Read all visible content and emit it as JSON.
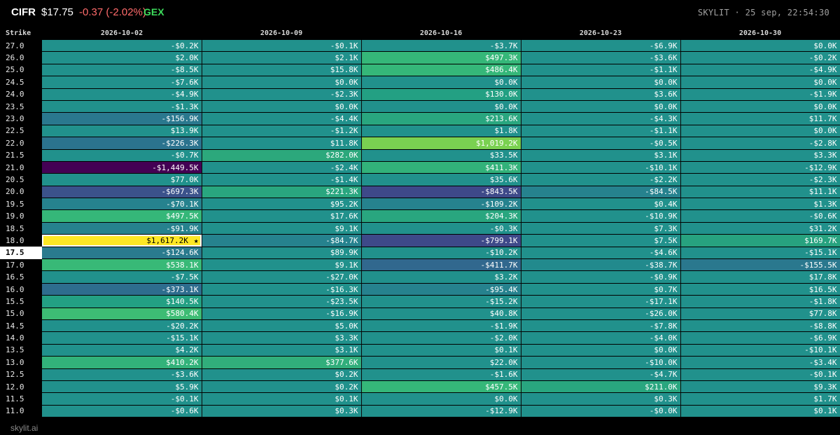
{
  "header": {
    "ticker": "CIFR",
    "price": "$17.75",
    "change": "-0.37 (-2.02%)",
    "mode": "GEX",
    "brand": "SKYLIT · 25 sep, 22:54:30",
    "colors": {
      "change": "#ff6b6b",
      "mode": "#3ddc5c"
    }
  },
  "table": {
    "strike_header": "Strike",
    "expirations": [
      "2026-10-02",
      "2026-10-09",
      "2026-10-16",
      "2026-10-23",
      "2026-10-30"
    ],
    "current_strike": "17.5",
    "highlight": {
      "strike": "18.0",
      "expiration": "2026-10-02",
      "marker": "★"
    },
    "rows": [
      {
        "strike": "27.0",
        "values": [
          "-$0.2K",
          "-$0.1K",
          "-$3.7K",
          "-$6.9K",
          "$0.0K"
        ],
        "colors": [
          "#21918c",
          "#21918c",
          "#21918c",
          "#21918c",
          "#21918c"
        ]
      },
      {
        "strike": "26.0",
        "values": [
          "$2.0K",
          "$2.1K",
          "$497.3K",
          "-$3.6K",
          "-$0.2K"
        ],
        "colors": [
          "#21918c",
          "#21918c",
          "#35b779",
          "#21918c",
          "#21918c"
        ]
      },
      {
        "strike": "25.0",
        "values": [
          "-$8.5K",
          "$15.8K",
          "$486.4K",
          "-$1.1K",
          "-$4.9K"
        ],
        "colors": [
          "#21918c",
          "#21918c",
          "#35b779",
          "#21918c",
          "#21918c"
        ]
      },
      {
        "strike": "24.5",
        "values": [
          "-$7.6K",
          "$0.0K",
          "$0.0K",
          "$0.0K",
          "$0.0K"
        ],
        "colors": [
          "#21918c",
          "#21918c",
          "#21918c",
          "#21918c",
          "#21918c"
        ]
      },
      {
        "strike": "24.0",
        "values": [
          "-$4.9K",
          "-$2.3K",
          "$130.0K",
          "$3.6K",
          "-$1.9K"
        ],
        "colors": [
          "#21918c",
          "#21918c",
          "#23a083",
          "#21918c",
          "#21918c"
        ]
      },
      {
        "strike": "23.5",
        "values": [
          "-$1.3K",
          "$0.0K",
          "$0.0K",
          "$0.0K",
          "$0.0K"
        ],
        "colors": [
          "#21918c",
          "#21918c",
          "#21918c",
          "#21918c",
          "#21918c"
        ]
      },
      {
        "strike": "23.0",
        "values": [
          "-$156.9K",
          "-$4.4K",
          "$213.6K",
          "-$4.3K",
          "$11.7K"
        ],
        "colors": [
          "#2a788e",
          "#21918c",
          "#29a67f",
          "#21918c",
          "#21918c"
        ]
      },
      {
        "strike": "22.5",
        "values": [
          "$13.9K",
          "-$1.2K",
          "$1.8K",
          "-$1.1K",
          "$0.0K"
        ],
        "colors": [
          "#21918c",
          "#21918c",
          "#21918c",
          "#21918c",
          "#21918c"
        ]
      },
      {
        "strike": "22.0",
        "values": [
          "-$226.3K",
          "$11.8K",
          "$1,019.2K",
          "-$0.5K",
          "-$2.8K"
        ],
        "colors": [
          "#2b738e",
          "#21918c",
          "#7ad151",
          "#21918c",
          "#21918c"
        ]
      },
      {
        "strike": "21.5",
        "values": [
          "-$0.7K",
          "$282.0K",
          "$33.5K",
          "$3.1K",
          "$3.3K"
        ],
        "colors": [
          "#21918c",
          "#2ca87c",
          "#21918c",
          "#21918c",
          "#21918c"
        ]
      },
      {
        "strike": "21.0",
        "values": [
          "-$1,449.5K",
          "-$2.4K",
          "$411.3K",
          "-$10.1K",
          "-$12.9K"
        ],
        "colors": [
          "#440154",
          "#21918c",
          "#32b27a",
          "#21918c",
          "#21918c"
        ]
      },
      {
        "strike": "20.5",
        "values": [
          "$77.0K",
          "-$1.4K",
          "$35.6K",
          "-$2.2K",
          "-$2.3K"
        ],
        "colors": [
          "#21918c",
          "#21918c",
          "#21918c",
          "#21918c",
          "#21918c"
        ]
      },
      {
        "strike": "20.0",
        "values": [
          "-$697.3K",
          "$221.3K",
          "-$843.5K",
          "-$84.5K",
          "$11.1K"
        ],
        "colors": [
          "#3b528b",
          "#29a67f",
          "#3e4989",
          "#26828e",
          "#21918c"
        ]
      },
      {
        "strike": "19.5",
        "values": [
          "-$70.1K",
          "$95.2K",
          "-$109.2K",
          "$0.4K",
          "$1.3K"
        ],
        "colors": [
          "#26828e",
          "#21918c",
          "#26828e",
          "#21918c",
          "#21918c"
        ]
      },
      {
        "strike": "19.0",
        "values": [
          "$497.5K",
          "$17.6K",
          "$204.3K",
          "-$10.9K",
          "-$0.6K"
        ],
        "colors": [
          "#35b779",
          "#21918c",
          "#29a67f",
          "#21918c",
          "#21918c"
        ]
      },
      {
        "strike": "18.5",
        "values": [
          "-$91.9K",
          "$9.1K",
          "-$0.3K",
          "$7.3K",
          "$31.2K"
        ],
        "colors": [
          "#26828e",
          "#21918c",
          "#21918c",
          "#21918c",
          "#21918c"
        ]
      },
      {
        "strike": "18.0",
        "values": [
          "$1,617.2K",
          "-$84.7K",
          "-$799.1K",
          "$7.5K",
          "$169.7K"
        ],
        "colors": [
          "#fde725",
          "#26828e",
          "#3e4989",
          "#21918c",
          "#27a27f"
        ]
      },
      {
        "strike": "17.5",
        "values": [
          "-$124.6K",
          "$89.9K",
          "-$10.2K",
          "-$4.6K",
          "-$15.1K"
        ],
        "colors": [
          "#2a7b8e",
          "#21918c",
          "#21918c",
          "#21918c",
          "#21918c"
        ]
      },
      {
        "strike": "17.0",
        "values": [
          "$538.1K",
          "$9.1K",
          "-$411.7K",
          "-$38.7K",
          "-$155.5K"
        ],
        "colors": [
          "#38b977",
          "#21918c",
          "#31688e",
          "#228a8d",
          "#2a788e"
        ]
      },
      {
        "strike": "16.5",
        "values": [
          "-$7.5K",
          "-$27.0K",
          "$3.2K",
          "-$0.9K",
          "$17.8K"
        ],
        "colors": [
          "#21918c",
          "#21918c",
          "#21918c",
          "#21918c",
          "#21918c"
        ]
      },
      {
        "strike": "16.0",
        "values": [
          "-$373.1K",
          "-$16.3K",
          "-$95.4K",
          "$0.7K",
          "$16.5K"
        ],
        "colors": [
          "#2e6d8e",
          "#21918c",
          "#26828e",
          "#21918c",
          "#21918c"
        ]
      },
      {
        "strike": "15.5",
        "values": [
          "$140.5K",
          "-$23.5K",
          "-$15.2K",
          "-$17.1K",
          "-$1.8K"
        ],
        "colors": [
          "#23a083",
          "#21918c",
          "#21918c",
          "#21918c",
          "#21918c"
        ]
      },
      {
        "strike": "15.0",
        "values": [
          "$580.4K",
          "-$16.9K",
          "$40.8K",
          "-$26.0K",
          "$77.8K"
        ],
        "colors": [
          "#3dbc74",
          "#21918c",
          "#21918c",
          "#21918c",
          "#21918c"
        ]
      },
      {
        "strike": "14.5",
        "values": [
          "-$20.2K",
          "$5.0K",
          "-$1.9K",
          "-$7.8K",
          "-$8.8K"
        ],
        "colors": [
          "#21918c",
          "#21918c",
          "#21918c",
          "#21918c",
          "#21918c"
        ]
      },
      {
        "strike": "14.0",
        "values": [
          "-$15.1K",
          "$3.3K",
          "-$2.0K",
          "-$4.0K",
          "-$6.9K"
        ],
        "colors": [
          "#21918c",
          "#21918c",
          "#21918c",
          "#21918c",
          "#21918c"
        ]
      },
      {
        "strike": "13.5",
        "values": [
          "$4.2K",
          "$3.1K",
          "$0.1K",
          "$0.0K",
          "-$10.1K"
        ],
        "colors": [
          "#21918c",
          "#21918c",
          "#21918c",
          "#21918c",
          "#21918c"
        ]
      },
      {
        "strike": "13.0",
        "values": [
          "$410.2K",
          "$377.6K",
          "$22.0K",
          "-$10.0K",
          "-$3.4K"
        ],
        "colors": [
          "#32b27a",
          "#31ae7b",
          "#21918c",
          "#21918c",
          "#21918c"
        ]
      },
      {
        "strike": "12.5",
        "values": [
          "-$3.6K",
          "$0.2K",
          "-$1.6K",
          "-$4.7K",
          "-$0.1K"
        ],
        "colors": [
          "#21918c",
          "#21918c",
          "#21918c",
          "#21918c",
          "#21918c"
        ]
      },
      {
        "strike": "12.0",
        "values": [
          "$5.9K",
          "$0.2K",
          "$457.5K",
          "$211.0K",
          "$9.3K"
        ],
        "colors": [
          "#21918c",
          "#21918c",
          "#35b779",
          "#29a67f",
          "#21918c"
        ]
      },
      {
        "strike": "11.5",
        "values": [
          "-$0.1K",
          "$0.1K",
          "$0.0K",
          "$0.3K",
          "$1.7K"
        ],
        "colors": [
          "#21918c",
          "#21918c",
          "#21918c",
          "#21918c",
          "#21918c"
        ]
      },
      {
        "strike": "11.0",
        "values": [
          "-$0.6K",
          "$0.3K",
          "-$12.9K",
          "-$0.0K",
          "$0.1K"
        ],
        "colors": [
          "#21918c",
          "#21918c",
          "#21918c",
          "#21918c",
          "#21918c"
        ]
      }
    ]
  },
  "footer": {
    "site": "skylit.ai"
  }
}
